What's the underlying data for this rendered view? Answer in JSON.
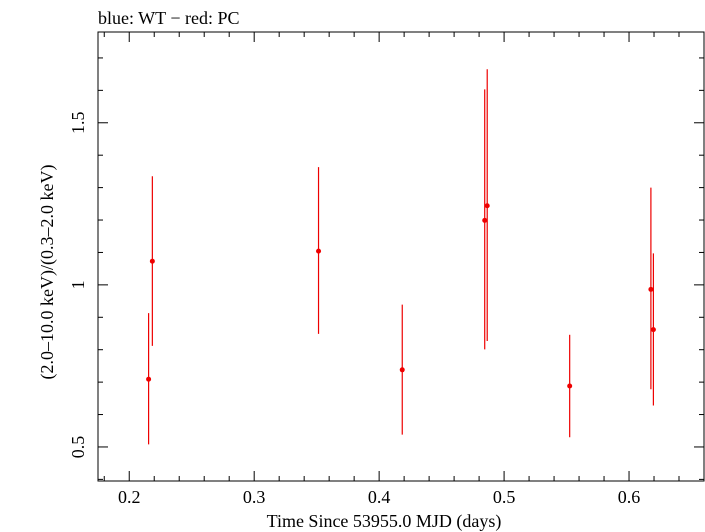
{
  "chart_data": {
    "type": "scatter",
    "title": "blue: WT − red: PC",
    "xlabel": "Time Since 53955.0 MJD (days)",
    "ylabel": "(2.0–10.0 keV)/(0.3–2.0 keV)",
    "xlim": [
      0.175,
      0.66
    ],
    "ylim": [
      0.395,
      1.78
    ],
    "x_ticks": [
      {
        "value": 0.2,
        "label": "0.2"
      },
      {
        "value": 0.3,
        "label": "0.3"
      },
      {
        "value": 0.4,
        "label": "0.4"
      },
      {
        "value": 0.5,
        "label": "0.5"
      },
      {
        "value": 0.6,
        "label": "0.6"
      }
    ],
    "y_ticks": [
      {
        "value": 0.5,
        "label": "0.5"
      },
      {
        "value": 1.0,
        "label": "1"
      },
      {
        "value": 1.5,
        "label": "1.5"
      }
    ],
    "series": [
      {
        "name": "PC",
        "color": "#ee0000",
        "points": [
          {
            "x": 0.2155,
            "y": 0.709,
            "ylo": 0.508,
            "yhi": 0.913
          },
          {
            "x": 0.2185,
            "y": 1.073,
            "ylo": 0.812,
            "yhi": 1.335
          },
          {
            "x": 0.3515,
            "y": 1.104,
            "ylo": 0.849,
            "yhi": 1.363
          },
          {
            "x": 0.4185,
            "y": 0.738,
            "ylo": 0.538,
            "yhi": 0.939
          },
          {
            "x": 0.4845,
            "y": 1.199,
            "ylo": 0.801,
            "yhi": 1.603
          },
          {
            "x": 0.4865,
            "y": 1.244,
            "ylo": 0.827,
            "yhi": 1.665
          },
          {
            "x": 0.5525,
            "y": 0.688,
            "ylo": 0.53,
            "yhi": 0.846
          },
          {
            "x": 0.6175,
            "y": 0.986,
            "ylo": 0.678,
            "yhi": 1.3
          },
          {
            "x": 0.6195,
            "y": 0.862,
            "ylo": 0.628,
            "yhi": 1.097
          }
        ]
      }
    ],
    "frame_color": "#000000"
  }
}
